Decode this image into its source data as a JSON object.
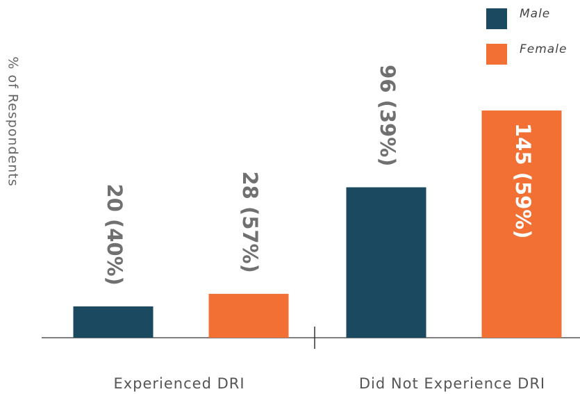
{
  "chart_data": {
    "type": "bar",
    "y_label": "% of Respondents",
    "categories": [
      "Experienced DRI",
      "Did Not Experience DRI"
    ],
    "series": [
      {
        "name": "Male",
        "color": "#1b4a60",
        "values": [
          20,
          96
        ],
        "value_labels": [
          "20 (40%)",
          "96 (39%)"
        ]
      },
      {
        "name": "Female",
        "color": "#f27034",
        "values": [
          28,
          145
        ],
        "value_labels": [
          "28 (57%)",
          "145 (59%)"
        ]
      }
    ],
    "ylim": [
      0,
      200
    ],
    "legend": "top-right"
  }
}
